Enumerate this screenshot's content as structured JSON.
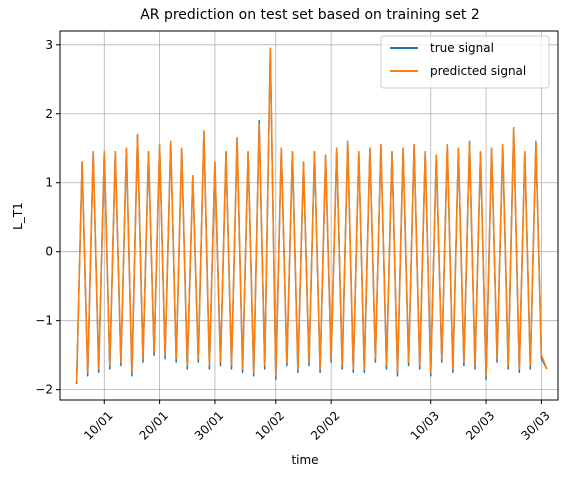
{
  "chart_data": {
    "type": "line",
    "title": "AR prediction on test set based on training set 2",
    "xlabel": "time",
    "ylabel": "L_T1",
    "xlim": [
      "2021-01-02",
      "2021-04-02"
    ],
    "ylim": [
      -2.15,
      3.2
    ],
    "x_ticks": [
      "2021-01-10",
      "2021-01-20",
      "2021-01-30",
      "2021-02-10",
      "2021-02-20",
      "2021-03-10",
      "2021-03-20",
      "2021-03-30"
    ],
    "x_tick_labels": [
      "10/01",
      "20/01",
      "30/01",
      "10/02",
      "20/02",
      "10/03",
      "20/03",
      "30/03"
    ],
    "y_ticks": [
      -2,
      -1,
      0,
      1,
      2,
      3
    ],
    "y_tick_labels": [
      "−2",
      "−1",
      "0",
      "1",
      "2",
      "3"
    ],
    "grid": true,
    "legend_position": "top-right",
    "series": [
      {
        "name": "true signal",
        "color": "#1f77b4"
      },
      {
        "name": "predicted signal",
        "color": "#ff7f0e"
      }
    ],
    "x": [
      "2021-01-05",
      "2021-01-06",
      "2021-01-07",
      "2021-01-08",
      "2021-01-09",
      "2021-01-10",
      "2021-01-11",
      "2021-01-12",
      "2021-01-13",
      "2021-01-14",
      "2021-01-15",
      "2021-01-16",
      "2021-01-17",
      "2021-01-18",
      "2021-01-19",
      "2021-01-20",
      "2021-01-21",
      "2021-01-22",
      "2021-01-23",
      "2021-01-24",
      "2021-01-25",
      "2021-01-26",
      "2021-01-27",
      "2021-01-28",
      "2021-01-29",
      "2021-01-30",
      "2021-01-31",
      "2021-02-01",
      "2021-02-02",
      "2021-02-03",
      "2021-02-04",
      "2021-02-05",
      "2021-02-06",
      "2021-02-07",
      "2021-02-08",
      "2021-02-09",
      "2021-02-10",
      "2021-02-11",
      "2021-02-12",
      "2021-02-13",
      "2021-02-14",
      "2021-02-15",
      "2021-02-16",
      "2021-02-17",
      "2021-02-18",
      "2021-02-19",
      "2021-02-20",
      "2021-02-21",
      "2021-02-22",
      "2021-02-23",
      "2021-02-24",
      "2021-02-25",
      "2021-02-26",
      "2021-02-27",
      "2021-02-28",
      "2021-03-01",
      "2021-03-02",
      "2021-03-03",
      "2021-03-04",
      "2021-03-05",
      "2021-03-06",
      "2021-03-07",
      "2021-03-08",
      "2021-03-09",
      "2021-03-10",
      "2021-03-11",
      "2021-03-12",
      "2021-03-13",
      "2021-03-14",
      "2021-03-15",
      "2021-03-16",
      "2021-03-17",
      "2021-03-18",
      "2021-03-19",
      "2021-03-20",
      "2021-03-21",
      "2021-03-22",
      "2021-03-23",
      "2021-03-24",
      "2021-03-25",
      "2021-03-26",
      "2021-03-27",
      "2021-03-28",
      "2021-03-29",
      "2021-03-30",
      "2021-03-31"
    ],
    "true_signal": [
      -1.92,
      1.3,
      -1.8,
      1.45,
      -1.75,
      1.45,
      -1.7,
      1.45,
      -1.65,
      1.5,
      -1.8,
      1.7,
      -1.6,
      1.45,
      -1.5,
      1.55,
      -1.55,
      1.6,
      -1.6,
      1.5,
      -1.7,
      1.1,
      -1.6,
      1.75,
      -1.7,
      1.3,
      -1.65,
      1.45,
      -1.7,
      1.65,
      -1.75,
      1.45,
      -1.8,
      1.9,
      -1.7,
      2.95,
      -1.85,
      1.5,
      -1.65,
      1.45,
      -1.75,
      1.3,
      -1.65,
      1.45,
      -1.75,
      1.4,
      -1.6,
      1.5,
      -1.7,
      1.6,
      -1.75,
      1.45,
      -1.75,
      1.5,
      -1.6,
      1.55,
      -1.7,
      1.45,
      -1.8,
      1.5,
      -1.65,
      1.55,
      -1.7,
      1.45,
      -1.8,
      1.4,
      -1.6,
      1.55,
      -1.75,
      1.5,
      -1.65,
      1.6,
      -1.7,
      1.45,
      -1.85,
      1.5,
      -1.6,
      1.55,
      -1.7,
      1.8,
      -1.75,
      1.45,
      -1.7,
      1.6,
      -1.55,
      -1.7
    ],
    "predicted_signal": [
      -1.9,
      1.3,
      -1.75,
      1.45,
      -1.7,
      1.45,
      -1.65,
      1.45,
      -1.6,
      1.5,
      -1.75,
      1.7,
      -1.55,
      1.45,
      -1.45,
      1.55,
      -1.5,
      1.6,
      -1.55,
      1.5,
      -1.65,
      1.1,
      -1.55,
      1.75,
      -1.65,
      1.3,
      -1.6,
      1.45,
      -1.65,
      1.65,
      -1.7,
      1.45,
      -1.75,
      1.85,
      -1.65,
      2.95,
      -1.8,
      1.5,
      -1.6,
      1.45,
      -1.7,
      1.3,
      -1.6,
      1.45,
      -1.7,
      1.4,
      -1.55,
      1.5,
      -1.65,
      1.6,
      -1.7,
      1.45,
      -1.7,
      1.5,
      -1.55,
      1.55,
      -1.65,
      1.45,
      -1.75,
      1.5,
      -1.6,
      1.55,
      -1.65,
      1.45,
      -1.75,
      1.4,
      -1.55,
      1.55,
      -1.7,
      1.5,
      -1.6,
      1.6,
      -1.65,
      1.45,
      -1.8,
      1.5,
      -1.55,
      1.55,
      -1.65,
      1.8,
      -1.7,
      1.45,
      -1.65,
      1.6,
      -1.5,
      -1.7
    ]
  }
}
